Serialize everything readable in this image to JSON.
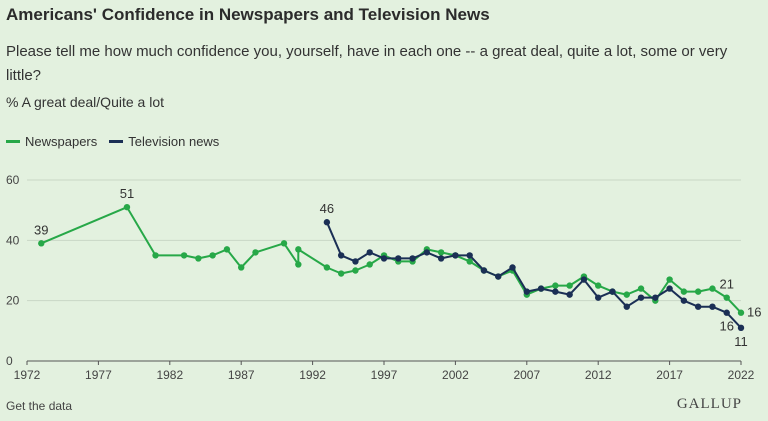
{
  "header": {
    "title": "Americans' Confidence in Newspapers and Television News",
    "subtitle": "Please tell me how much confidence you, yourself, have in each one -- a great deal, quite a lot, some or very little?",
    "unit": "% A great deal/Quite a lot"
  },
  "footer": {
    "link": "Get the data",
    "brand": "GALLUP"
  },
  "colors": {
    "newspapers": "#27a848",
    "television": "#1b2f55",
    "grid": "#c9d7c6",
    "axis": "#555555"
  },
  "chart_data": {
    "type": "line",
    "title": "Americans' Confidence in Newspapers and Television News",
    "ylabel": "% A great deal/Quite a lot",
    "xlim": [
      1972,
      2022
    ],
    "ylim": [
      0,
      60
    ],
    "yticks": [
      0,
      20,
      40,
      60
    ],
    "xticks": [
      1972,
      1977,
      1982,
      1987,
      1992,
      1997,
      2002,
      2007,
      2012,
      2017,
      2022
    ],
    "grid": true,
    "legend_position": "top-left",
    "series": [
      {
        "name": "Newspapers",
        "points": [
          [
            1973,
            39
          ],
          [
            1979,
            51
          ],
          [
            1981,
            35
          ],
          [
            1983,
            35
          ],
          [
            1984,
            34
          ],
          [
            1985,
            35
          ],
          [
            1986,
            37
          ],
          [
            1987,
            31
          ],
          [
            1988,
            36
          ],
          [
            1990,
            39
          ],
          [
            1991,
            32
          ],
          [
            1991,
            37
          ],
          [
            1993,
            31
          ],
          [
            1994,
            29
          ],
          [
            1995,
            30
          ],
          [
            1996,
            32
          ],
          [
            1997,
            35
          ],
          [
            1998,
            33
          ],
          [
            1999,
            33
          ],
          [
            2000,
            37
          ],
          [
            2001,
            36
          ],
          [
            2002,
            35
          ],
          [
            2003,
            33
          ],
          [
            2004,
            30
          ],
          [
            2005,
            28
          ],
          [
            2006,
            30
          ],
          [
            2007,
            22
          ],
          [
            2008,
            24
          ],
          [
            2009,
            25
          ],
          [
            2010,
            25
          ],
          [
            2011,
            28
          ],
          [
            2012,
            25
          ],
          [
            2013,
            23
          ],
          [
            2014,
            22
          ],
          [
            2015,
            24
          ],
          [
            2016,
            20
          ],
          [
            2017,
            27
          ],
          [
            2018,
            23
          ],
          [
            2019,
            23
          ],
          [
            2020,
            24
          ],
          [
            2021,
            21
          ],
          [
            2022,
            16
          ]
        ],
        "labels": [
          {
            "x": 1973,
            "y": 39,
            "text": "39",
            "pos": "above"
          },
          {
            "x": 1979,
            "y": 51,
            "text": "51",
            "pos": "above"
          },
          {
            "x": 2021,
            "y": 21,
            "text": "21",
            "pos": "above"
          },
          {
            "x": 2022,
            "y": 16,
            "text": "16",
            "pos": "right"
          }
        ]
      },
      {
        "name": "Television news",
        "points": [
          [
            1993,
            46
          ],
          [
            1994,
            35
          ],
          [
            1995,
            33
          ],
          [
            1996,
            36
          ],
          [
            1997,
            34
          ],
          [
            1998,
            34
          ],
          [
            1999,
            34
          ],
          [
            2000,
            36
          ],
          [
            2001,
            34
          ],
          [
            2002,
            35
          ],
          [
            2003,
            35
          ],
          [
            2004,
            30
          ],
          [
            2005,
            28
          ],
          [
            2006,
            31
          ],
          [
            2007,
            23
          ],
          [
            2008,
            24
          ],
          [
            2009,
            23
          ],
          [
            2010,
            22
          ],
          [
            2011,
            27
          ],
          [
            2012,
            21
          ],
          [
            2013,
            23
          ],
          [
            2014,
            18
          ],
          [
            2015,
            21
          ],
          [
            2016,
            21
          ],
          [
            2017,
            24
          ],
          [
            2018,
            20
          ],
          [
            2019,
            18
          ],
          [
            2020,
            18
          ],
          [
            2021,
            16
          ],
          [
            2022,
            11
          ]
        ],
        "labels": [
          {
            "x": 1993,
            "y": 46,
            "text": "46",
            "pos": "above"
          },
          {
            "x": 2021,
            "y": 16,
            "text": "16",
            "pos": "below"
          },
          {
            "x": 2022,
            "y": 11,
            "text": "11",
            "pos": "below"
          }
        ]
      }
    ]
  }
}
